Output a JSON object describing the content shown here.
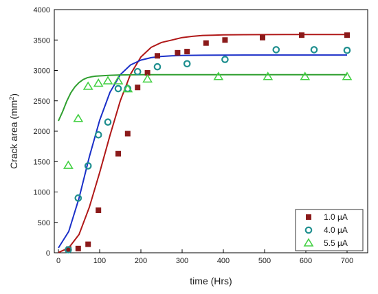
{
  "chart_data": {
    "type": "scatter",
    "title": "",
    "xlabel": "time (Hrs)",
    "ylabel": "Crack area (mm",
    "ylabel_sup": "2",
    "ylabel_close": ")",
    "xlim": [
      -10,
      750
    ],
    "ylim": [
      0,
      4000
    ],
    "x_ticks": [
      0,
      100,
      200,
      300,
      400,
      500,
      600,
      700
    ],
    "y_ticks": [
      0,
      500,
      1000,
      1500,
      2000,
      2500,
      3000,
      3500,
      4000
    ],
    "x_tick_labels": [
      "0",
      "100",
      "200",
      "300",
      "400",
      "500",
      "600",
      "700"
    ],
    "y_tick_labels": [
      "0",
      "500",
      "1000",
      "1500",
      "2000",
      "2500",
      "3000",
      "3500",
      "4000"
    ],
    "grid": false,
    "legend_position": "bottom-right",
    "series": [
      {
        "name": "1.0 µA",
        "marker": "square",
        "color": "#8b1a1a",
        "points": [
          [
            25,
            60
          ],
          [
            48,
            70
          ],
          [
            72,
            140
          ],
          [
            97,
            700
          ],
          [
            145,
            1630
          ],
          [
            168,
            1960
          ],
          [
            192,
            2720
          ],
          [
            216,
            2960
          ],
          [
            240,
            3240
          ],
          [
            289,
            3290
          ],
          [
            312,
            3310
          ],
          [
            358,
            3450
          ],
          [
            404,
            3500
          ],
          [
            495,
            3540
          ],
          [
            590,
            3580
          ],
          [
            700,
            3580
          ]
        ]
      },
      {
        "name": "4.0 µA",
        "marker": "circle",
        "color": "#1f8f8f",
        "points": [
          [
            24,
            50
          ],
          [
            48,
            900
          ],
          [
            72,
            1430
          ],
          [
            97,
            1940
          ],
          [
            120,
            2150
          ],
          [
            145,
            2700
          ],
          [
            168,
            2700
          ],
          [
            192,
            2980
          ],
          [
            240,
            3060
          ],
          [
            312,
            3110
          ],
          [
            404,
            3180
          ],
          [
            528,
            3340
          ],
          [
            620,
            3340
          ],
          [
            700,
            3330
          ]
        ]
      },
      {
        "name": "5.5 µA",
        "marker": "triangle",
        "color": "#44d044",
        "points": [
          [
            24,
            1440
          ],
          [
            48,
            2210
          ],
          [
            72,
            2740
          ],
          [
            97,
            2790
          ],
          [
            120,
            2830
          ],
          [
            145,
            2830
          ],
          [
            168,
            2700
          ],
          [
            216,
            2860
          ],
          [
            388,
            2900
          ],
          [
            508,
            2900
          ],
          [
            598,
            2900
          ],
          [
            700,
            2900
          ]
        ]
      }
    ],
    "fits": [
      {
        "series": "1.0 µA",
        "color": "#b01818",
        "x": [
          0,
          25,
          50,
          75,
          100,
          125,
          150,
          175,
          200,
          225,
          250,
          275,
          300,
          325,
          350,
          375,
          400,
          450,
          500,
          550,
          600,
          650,
          700
        ],
        "y": [
          5,
          80,
          300,
          750,
          1320,
          1930,
          2500,
          2940,
          3220,
          3380,
          3460,
          3500,
          3540,
          3560,
          3575,
          3580,
          3585,
          3588,
          3589,
          3590,
          3590,
          3590,
          3590
        ]
      },
      {
        "series": "4.0 µA",
        "color": "#1a2fc8",
        "x": [
          0,
          25,
          50,
          75,
          100,
          125,
          150,
          175,
          200,
          225,
          250,
          275,
          300,
          350,
          400,
          450,
          500,
          550,
          600,
          650,
          700
        ],
        "y": [
          80,
          350,
          900,
          1580,
          2180,
          2640,
          2930,
          3090,
          3170,
          3210,
          3230,
          3240,
          3245,
          3250,
          3252,
          3253,
          3253,
          3253,
          3253,
          3253,
          3253
        ]
      },
      {
        "series": "5.5 µA",
        "color": "#2f9f2f",
        "x": [
          0,
          10,
          20,
          30,
          40,
          50,
          60,
          70,
          80,
          90,
          100,
          125,
          150,
          175,
          200,
          250,
          300,
          400,
          500,
          600,
          700
        ],
        "y": [
          2170,
          2320,
          2490,
          2630,
          2730,
          2800,
          2850,
          2880,
          2895,
          2905,
          2910,
          2920,
          2925,
          2928,
          2930,
          2930,
          2930,
          2930,
          2930,
          2930,
          2930
        ]
      }
    ]
  }
}
